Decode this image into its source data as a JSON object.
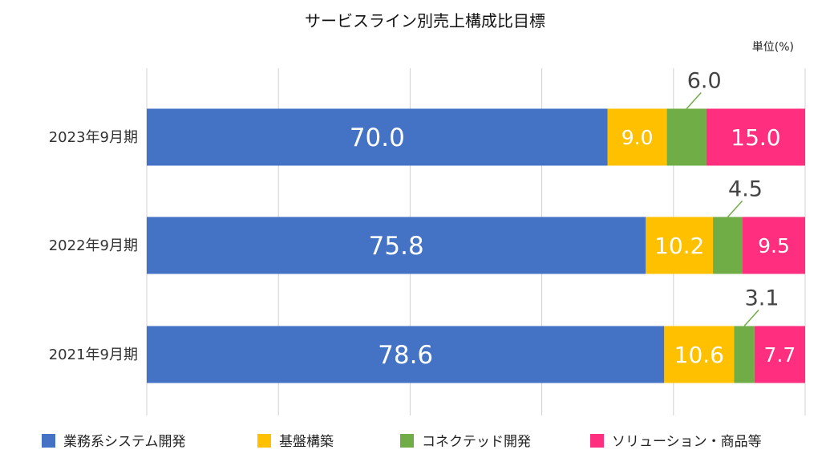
{
  "chart_data": {
    "type": "bar",
    "orientation": "horizontal",
    "stacked": true,
    "title": "サービスライン別売上構成比目標",
    "unit_label": "単位(%)",
    "categories": [
      "2023年9月期",
      "2022年9月期",
      "2021年9月期"
    ],
    "series": [
      {
        "name": "業務系システム開発",
        "color": "#4472C4",
        "values": [
          70.0,
          75.8,
          78.6
        ],
        "labels": [
          "70.0",
          "75.8",
          "78.6"
        ]
      },
      {
        "name": "基盤構築",
        "color": "#FFC000",
        "values": [
          9.0,
          10.2,
          10.6
        ],
        "labels": [
          "9.0",
          "10.2",
          "10.6"
        ]
      },
      {
        "name": "コネクテッド開発",
        "color": "#70AD47",
        "values": [
          6.0,
          4.5,
          3.1
        ],
        "labels": [
          "6.0",
          "4.5",
          "3.1"
        ]
      },
      {
        "name": "ソリューション・商品等",
        "color": "#FF2E7E",
        "values": [
          15.0,
          9.5,
          7.7
        ],
        "labels": [
          "15.0",
          "9.5",
          "7.7"
        ]
      }
    ],
    "xlim": [
      0,
      100
    ],
    "grid": true,
    "legend_position": "bottom"
  }
}
